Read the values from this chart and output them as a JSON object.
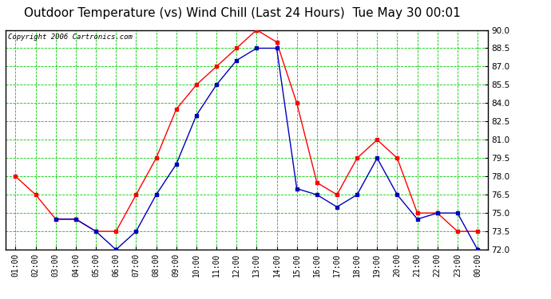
{
  "title": "Outdoor Temperature (vs) Wind Chill (Last 24 Hours)  Tue May 30 00:01",
  "copyright": "Copyright 2006 Cartronics.com",
  "x_labels": [
    "01:00",
    "02:00",
    "03:00",
    "04:00",
    "05:00",
    "06:00",
    "07:00",
    "08:00",
    "09:00",
    "10:00",
    "11:00",
    "12:00",
    "13:00",
    "14:00",
    "15:00",
    "16:00",
    "17:00",
    "18:00",
    "19:00",
    "20:00",
    "21:00",
    "22:00",
    "23:00",
    "00:00"
  ],
  "temp_red": [
    78.0,
    76.5,
    74.5,
    74.5,
    73.5,
    73.5,
    76.5,
    79.5,
    83.5,
    85.5,
    87.0,
    88.5,
    90.0,
    89.0,
    84.0,
    77.5,
    76.5,
    79.5,
    81.0,
    79.5,
    75.0,
    75.0,
    73.5,
    73.5
  ],
  "temp_blue": [
    null,
    null,
    74.5,
    74.5,
    73.5,
    72.0,
    73.5,
    76.5,
    79.0,
    83.0,
    85.5,
    87.5,
    88.5,
    88.5,
    77.0,
    76.5,
    75.5,
    76.5,
    79.5,
    76.5,
    74.5,
    75.0,
    75.0,
    72.0
  ],
  "ylim_min": 72.0,
  "ylim_max": 90.0,
  "ytick_step": 1.5,
  "red_color": "#ff0000",
  "blue_color": "#0000bb",
  "grid_color": "#00cc00",
  "bg_color": "#ffffff",
  "border_color": "#000000",
  "title_fontsize": 11,
  "copyright_fontsize": 6.5,
  "tick_label_fontsize": 7.5,
  "xtick_label_fontsize": 7
}
